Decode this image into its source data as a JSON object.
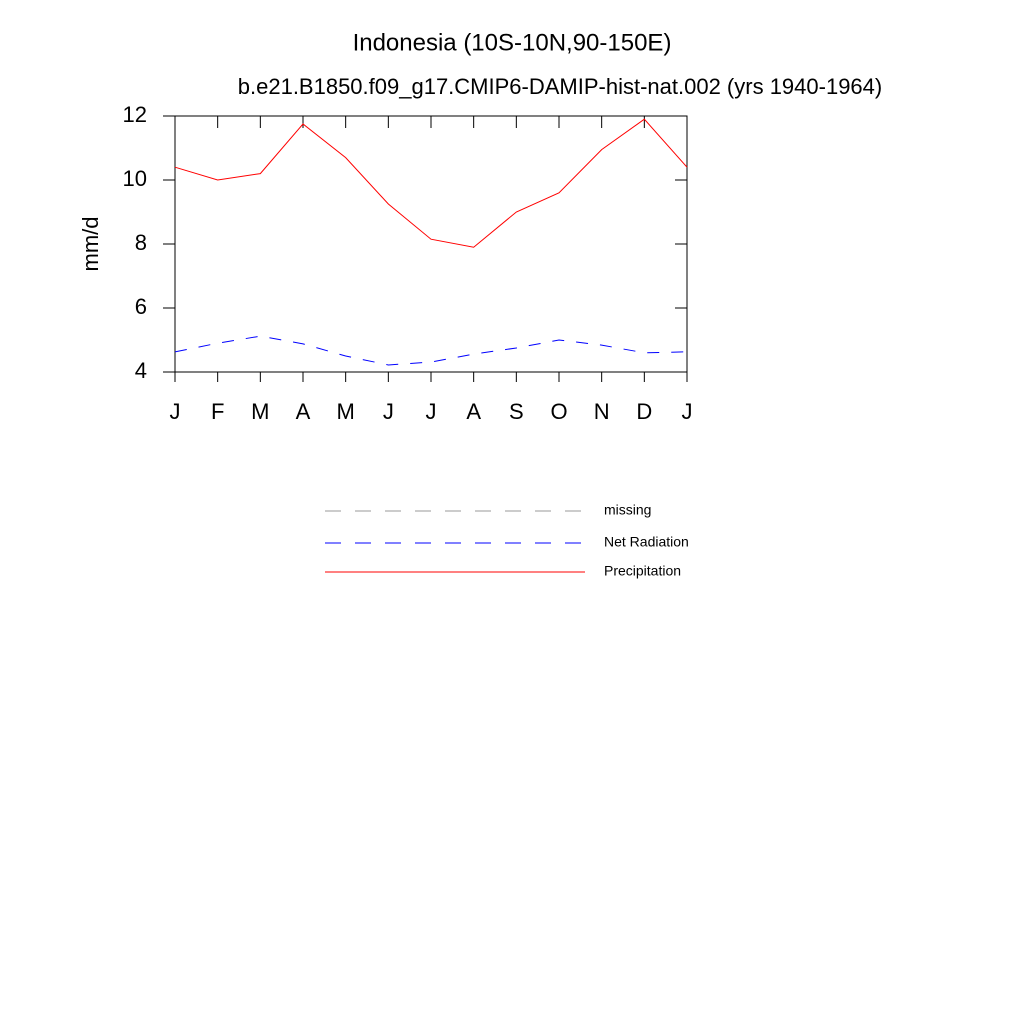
{
  "chart_data": {
    "type": "line",
    "title": "Indonesia (10S-10N,90-150E)",
    "subtitle": "b.e21.B1850.f09_g17.CMIP6-DAMIP-hist-nat.002 (yrs 1940-1964)",
    "ylabel": "mm/d",
    "categories": [
      "J",
      "F",
      "M",
      "A",
      "M",
      "J",
      "J",
      "A",
      "S",
      "O",
      "N",
      "D",
      "J"
    ],
    "ylim": [
      4,
      12
    ],
    "yticks": [
      4,
      6,
      8,
      10,
      12
    ],
    "series": [
      {
        "name": "missing",
        "color": "#999999",
        "dashed": true,
        "values": [
          null,
          null,
          null,
          null,
          null,
          null,
          null,
          null,
          null,
          null,
          null,
          null,
          null
        ]
      },
      {
        "name": "Net Radiation",
        "color": "#0000ff",
        "dashed": true,
        "values": [
          4.63,
          4.9,
          5.12,
          4.88,
          4.5,
          4.22,
          4.31,
          4.56,
          4.75,
          5.0,
          4.84,
          4.6,
          4.63
        ]
      },
      {
        "name": "Precipitation",
        "color": "#ff0000",
        "dashed": false,
        "values": [
          10.4,
          10.0,
          10.2,
          11.75,
          10.7,
          9.25,
          8.15,
          7.9,
          9.0,
          9.6,
          10.95,
          11.9,
          10.4
        ]
      }
    ]
  }
}
